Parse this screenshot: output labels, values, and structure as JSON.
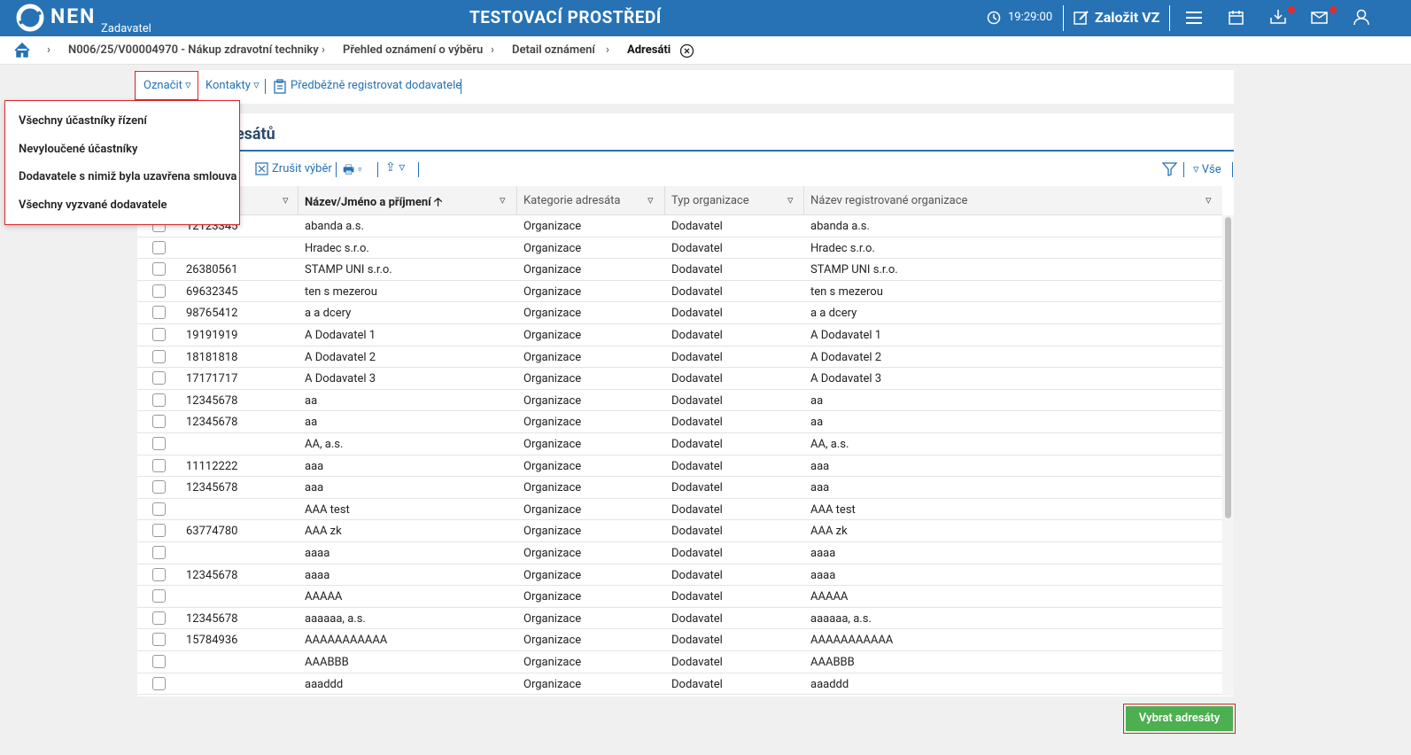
{
  "header": {
    "logo": "NEN",
    "role": "Zadavatel",
    "title": "TESTOVACÍ PROSTŘEDÍ",
    "time": "19:29:00",
    "create_button": "Založit VZ"
  },
  "breadcrumb": [
    "N006/25/V00004970 - Nákup zdravotní techniky",
    "Přehled oznámení o výběru",
    "Detail oznámení",
    "Adresáti"
  ],
  "toolbar": {
    "mark": "Označit",
    "contacts": "Kontakty",
    "preregister": "Předběžně registrovat dodavatele"
  },
  "dropdown": [
    "Všechny účastníky řízení",
    "Nevyloučené účastníky",
    "Dodavatele s nimiž byla uzavřena smlouva",
    "Všechny vyzvané dodavatele"
  ],
  "section": {
    "title": "Seznam adresátů",
    "cancel_selection": "Zrušit výběr",
    "view": "Vše"
  },
  "table": {
    "columns": [
      "Název/Jméno a příjmení",
      "Kategorie adresáta",
      "Typ organizace",
      "Název registrované organizace"
    ],
    "rows": [
      [
        "12123345",
        "abanda a.s.",
        "Organizace",
        "Dodavatel",
        "abanda a.s."
      ],
      [
        null,
        "Hradec s.r.o.",
        "Organizace",
        "Dodavatel",
        "Hradec s.r.o."
      ],
      [
        "26380561",
        "STAMP UNI s.r.o.",
        "Organizace",
        "Dodavatel",
        "STAMP UNI s.r.o."
      ],
      [
        "69632345",
        "ten s mezerou",
        "Organizace",
        "Dodavatel",
        "ten s mezerou"
      ],
      [
        "98765412",
        "a a dcery",
        "Organizace",
        "Dodavatel",
        "a a dcery"
      ],
      [
        "19191919",
        "A Dodavatel 1",
        "Organizace",
        "Dodavatel",
        "A Dodavatel 1"
      ],
      [
        "18181818",
        "A Dodavatel 2",
        "Organizace",
        "Dodavatel",
        "A Dodavatel 2"
      ],
      [
        "17171717",
        "A Dodavatel 3",
        "Organizace",
        "Dodavatel",
        "A Dodavatel 3"
      ],
      [
        "12345678",
        "aa",
        "Organizace",
        "Dodavatel",
        "aa"
      ],
      [
        "12345678",
        "aa",
        "Organizace",
        "Dodavatel",
        "aa"
      ],
      [
        null,
        "AA, a.s.",
        "Organizace",
        "Dodavatel",
        "AA, a.s."
      ],
      [
        "11112222",
        "aaa",
        "Organizace",
        "Dodavatel",
        "aaa"
      ],
      [
        "12345678",
        "aaa",
        "Organizace",
        "Dodavatel",
        "aaa"
      ],
      [
        null,
        "AAA test",
        "Organizace",
        "Dodavatel",
        "AAA test"
      ],
      [
        "63774780",
        "AAA zk",
        "Organizace",
        "Dodavatel",
        "AAA zk"
      ],
      [
        null,
        "aaaa",
        "Organizace",
        "Dodavatel",
        "aaaa"
      ],
      [
        "12345678",
        "aaaa",
        "Organizace",
        "Dodavatel",
        "aaaa"
      ],
      [
        null,
        "AAAAA",
        "Organizace",
        "Dodavatel",
        "AAAAA"
      ],
      [
        "12345678",
        "aaaaaa, a.s.",
        "Organizace",
        "Dodavatel",
        "aaaaaa, a.s."
      ],
      [
        "15784936",
        "AAAAAAAAAAA",
        "Organizace",
        "Dodavatel",
        "AAAAAAAAAAA"
      ],
      [
        null,
        "AAABBB",
        "Organizace",
        "Dodavatel",
        "AAABBB"
      ],
      [
        null,
        "aaaddd",
        "Organizace",
        "Dodavatel",
        "aaaddd"
      ]
    ]
  },
  "footer": {
    "select_button": "Vybrat adresáty"
  }
}
